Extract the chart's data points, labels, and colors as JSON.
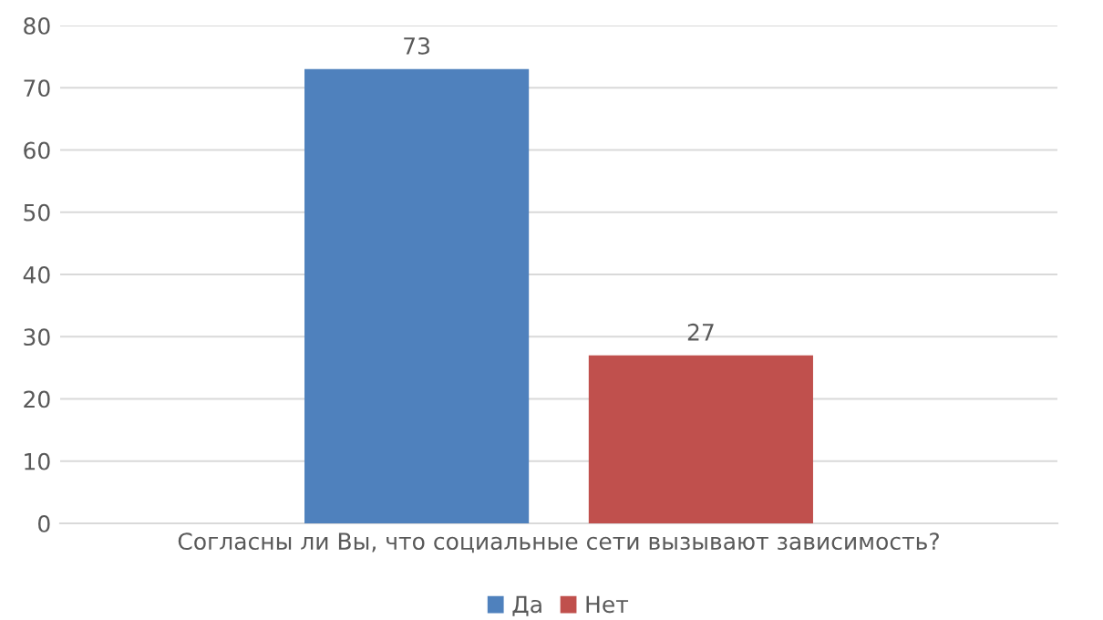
{
  "chart_data": {
    "type": "bar",
    "categories": [
      "Согласны ли Вы, что социальные сети вызывают зависимость?"
    ],
    "series": [
      {
        "name": "Да",
        "color": "#4f81bd",
        "values": [
          73
        ]
      },
      {
        "name": "Нет",
        "color": "#c0504d",
        "values": [
          27
        ]
      }
    ],
    "ylim": [
      0,
      80
    ],
    "yticks": [
      0,
      10,
      20,
      30,
      40,
      50,
      60,
      70,
      80
    ],
    "grid": "y",
    "legend": "bottom",
    "data_labels": true
  }
}
